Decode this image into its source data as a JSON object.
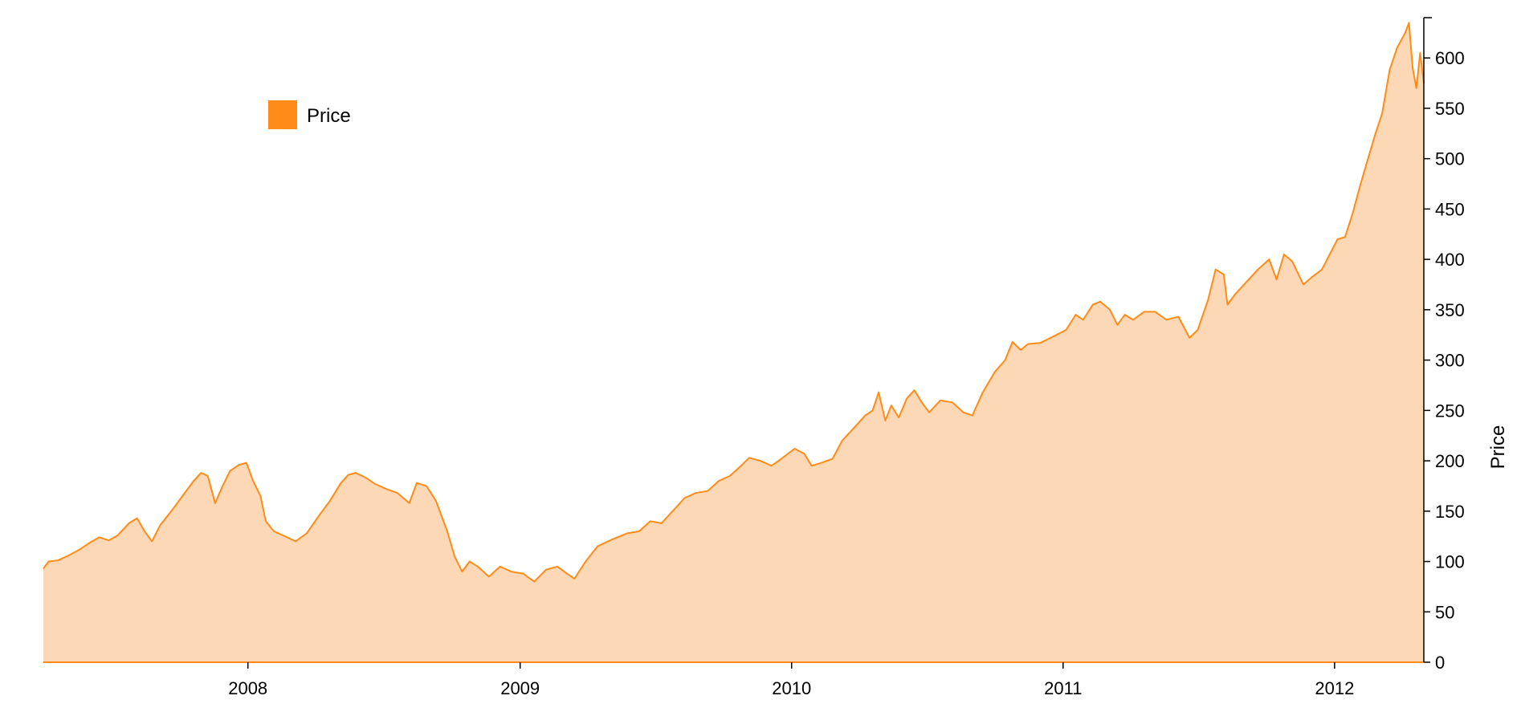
{
  "chart_data": {
    "type": "area",
    "x_axis": {
      "type": "date",
      "range": [
        "2007-04-01",
        "2012-04-30"
      ],
      "ticks": [
        "2008",
        "2009",
        "2010",
        "2011",
        "2012"
      ]
    },
    "y_axis": {
      "label": "Price",
      "range": [
        0,
        640
      ],
      "position": "right",
      "ticks": [
        "0",
        "50",
        "100",
        "150",
        "200",
        "250",
        "300",
        "350",
        "400",
        "450",
        "500",
        "550",
        "600"
      ]
    },
    "grid": false,
    "legend": {
      "placement": "top-left",
      "entries": [
        {
          "label": "Price",
          "color": "#ff8c19"
        }
      ]
    },
    "colors": {
      "line": "#ff8c19",
      "fill": "#fdd8b6"
    },
    "series": [
      {
        "name": "Price",
        "points": [
          [
            "2007-04-01",
            93
          ],
          [
            "2007-04-08",
            100
          ],
          [
            "2007-04-20",
            101
          ],
          [
            "2007-05-05",
            106
          ],
          [
            "2007-05-20",
            112
          ],
          [
            "2007-06-01",
            118
          ],
          [
            "2007-06-15",
            124
          ],
          [
            "2007-06-28",
            121
          ],
          [
            "2007-07-10",
            126
          ],
          [
            "2007-07-25",
            138
          ],
          [
            "2007-08-05",
            143
          ],
          [
            "2007-08-15",
            130
          ],
          [
            "2007-08-25",
            120
          ],
          [
            "2007-09-05",
            136
          ],
          [
            "2007-09-20",
            150
          ],
          [
            "2007-10-05",
            165
          ],
          [
            "2007-10-20",
            180
          ],
          [
            "2007-10-30",
            188
          ],
          [
            "2007-11-08",
            185
          ],
          [
            "2007-11-18",
            158
          ],
          [
            "2007-11-28",
            175
          ],
          [
            "2007-12-08",
            190
          ],
          [
            "2007-12-20",
            196
          ],
          [
            "2007-12-30",
            198
          ],
          [
            "2008-01-08",
            180
          ],
          [
            "2008-01-18",
            165
          ],
          [
            "2008-01-25",
            140
          ],
          [
            "2008-02-05",
            130
          ],
          [
            "2008-02-20",
            125
          ],
          [
            "2008-03-05",
            120
          ],
          [
            "2008-03-20",
            128
          ],
          [
            "2008-04-05",
            145
          ],
          [
            "2008-04-20",
            160
          ],
          [
            "2008-05-05",
            178
          ],
          [
            "2008-05-15",
            186
          ],
          [
            "2008-05-25",
            188
          ],
          [
            "2008-06-08",
            183
          ],
          [
            "2008-06-20",
            177
          ],
          [
            "2008-07-05",
            172
          ],
          [
            "2008-07-20",
            168
          ],
          [
            "2008-08-05",
            158
          ],
          [
            "2008-08-15",
            178
          ],
          [
            "2008-08-28",
            175
          ],
          [
            "2008-09-10",
            160
          ],
          [
            "2008-09-25",
            130
          ],
          [
            "2008-10-05",
            105
          ],
          [
            "2008-10-15",
            90
          ],
          [
            "2008-10-25",
            100
          ],
          [
            "2008-11-05",
            95
          ],
          [
            "2008-11-20",
            85
          ],
          [
            "2008-12-05",
            95
          ],
          [
            "2008-12-20",
            90
          ],
          [
            "2009-01-05",
            88
          ],
          [
            "2009-01-20",
            80
          ],
          [
            "2009-02-05",
            92
          ],
          [
            "2009-02-20",
            95
          ],
          [
            "2009-03-05",
            88
          ],
          [
            "2009-03-15",
            83
          ],
          [
            "2009-03-30",
            100
          ],
          [
            "2009-04-15",
            115
          ],
          [
            "2009-05-05",
            122
          ],
          [
            "2009-05-25",
            128
          ],
          [
            "2009-06-10",
            130
          ],
          [
            "2009-06-25",
            140
          ],
          [
            "2009-07-10",
            138
          ],
          [
            "2009-07-25",
            150
          ],
          [
            "2009-08-10",
            163
          ],
          [
            "2009-08-25",
            168
          ],
          [
            "2009-09-10",
            170
          ],
          [
            "2009-09-25",
            180
          ],
          [
            "2009-10-10",
            185
          ],
          [
            "2009-10-25",
            195
          ],
          [
            "2009-11-05",
            203
          ],
          [
            "2009-11-20",
            200
          ],
          [
            "2009-12-05",
            195
          ],
          [
            "2009-12-20",
            203
          ],
          [
            "2010-01-05",
            212
          ],
          [
            "2010-01-18",
            207
          ],
          [
            "2010-01-28",
            195
          ],
          [
            "2010-02-10",
            198
          ],
          [
            "2010-02-25",
            202
          ],
          [
            "2010-03-10",
            220
          ],
          [
            "2010-03-25",
            232
          ],
          [
            "2010-04-10",
            245
          ],
          [
            "2010-04-20",
            250
          ],
          [
            "2010-04-28",
            268
          ],
          [
            "2010-05-07",
            240
          ],
          [
            "2010-05-15",
            255
          ],
          [
            "2010-05-25",
            243
          ],
          [
            "2010-06-05",
            262
          ],
          [
            "2010-06-15",
            270
          ],
          [
            "2010-06-25",
            258
          ],
          [
            "2010-07-05",
            248
          ],
          [
            "2010-07-20",
            260
          ],
          [
            "2010-08-05",
            258
          ],
          [
            "2010-08-20",
            248
          ],
          [
            "2010-09-01",
            245
          ],
          [
            "2010-09-15",
            268
          ],
          [
            "2010-10-01",
            288
          ],
          [
            "2010-10-15",
            300
          ],
          [
            "2010-10-25",
            318
          ],
          [
            "2010-11-05",
            310
          ],
          [
            "2010-11-15",
            316
          ],
          [
            "2010-12-01",
            317
          ],
          [
            "2010-12-15",
            322
          ],
          [
            "2011-01-05",
            330
          ],
          [
            "2011-01-18",
            345
          ],
          [
            "2011-01-28",
            340
          ],
          [
            "2011-02-10",
            355
          ],
          [
            "2011-02-20",
            358
          ],
          [
            "2011-03-05",
            350
          ],
          [
            "2011-03-15",
            335
          ],
          [
            "2011-03-25",
            345
          ],
          [
            "2011-04-05",
            340
          ],
          [
            "2011-04-20",
            348
          ],
          [
            "2011-05-05",
            348
          ],
          [
            "2011-05-20",
            340
          ],
          [
            "2011-06-05",
            343
          ],
          [
            "2011-06-20",
            322
          ],
          [
            "2011-07-01",
            330
          ],
          [
            "2011-07-15",
            360
          ],
          [
            "2011-07-25",
            390
          ],
          [
            "2011-08-05",
            385
          ],
          [
            "2011-08-10",
            355
          ],
          [
            "2011-08-20",
            365
          ],
          [
            "2011-09-05",
            378
          ],
          [
            "2011-09-20",
            390
          ],
          [
            "2011-10-05",
            400
          ],
          [
            "2011-10-15",
            380
          ],
          [
            "2011-10-25",
            405
          ],
          [
            "2011-11-05",
            398
          ],
          [
            "2011-11-20",
            375
          ],
          [
            "2011-12-01",
            382
          ],
          [
            "2011-12-15",
            390
          ],
          [
            "2012-01-05",
            420
          ],
          [
            "2012-01-15",
            422
          ],
          [
            "2012-01-25",
            445
          ],
          [
            "2012-02-05",
            475
          ],
          [
            "2012-02-15",
            500
          ],
          [
            "2012-02-25",
            525
          ],
          [
            "2012-03-05",
            545
          ],
          [
            "2012-03-15",
            588
          ],
          [
            "2012-03-25",
            610
          ],
          [
            "2012-04-05",
            625
          ],
          [
            "2012-04-10",
            635
          ],
          [
            "2012-04-15",
            590
          ],
          [
            "2012-04-20",
            570
          ],
          [
            "2012-04-25",
            605
          ],
          [
            "2012-04-30",
            575
          ]
        ]
      }
    ]
  }
}
